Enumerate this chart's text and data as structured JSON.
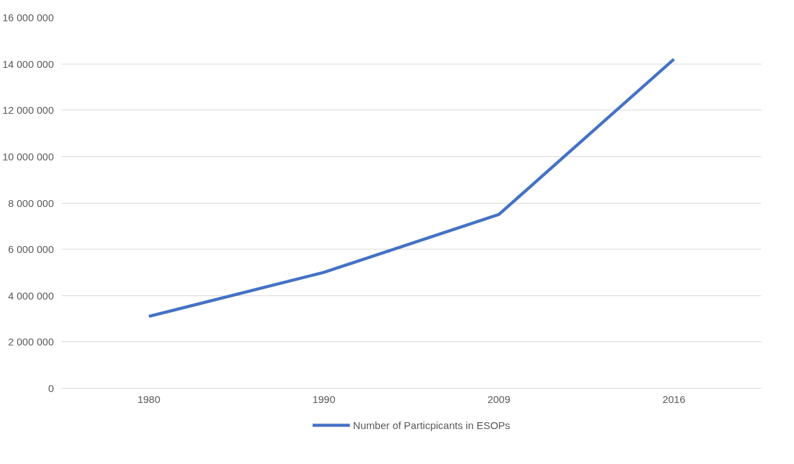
{
  "chart_data": {
    "type": "line",
    "categories": [
      "1980",
      "1990",
      "2009",
      "2016"
    ],
    "series": [
      {
        "name": "Number of Particpicants in ESOPs",
        "color": "#4472c4",
        "values": [
          3100000,
          5000000,
          7500000,
          14200000
        ]
      }
    ],
    "ylim": [
      0,
      16000000
    ],
    "yticks": [
      {
        "value": 0,
        "label": "0"
      },
      {
        "value": 2000000,
        "label": "2 000 000"
      },
      {
        "value": 4000000,
        "label": "4 000 000"
      },
      {
        "value": 6000000,
        "label": "6 000 000"
      },
      {
        "value": 8000000,
        "label": "8 000 000"
      },
      {
        "value": 10000000,
        "label": "10 000 000"
      },
      {
        "value": 12000000,
        "label": "12 000 000"
      },
      {
        "value": 14000000,
        "label": "14 000 000"
      },
      {
        "value": 16000000,
        "label": "16 000 000"
      }
    ],
    "grid": "y",
    "legend": "bottom",
    "marker": "none",
    "line_style": "solid"
  }
}
